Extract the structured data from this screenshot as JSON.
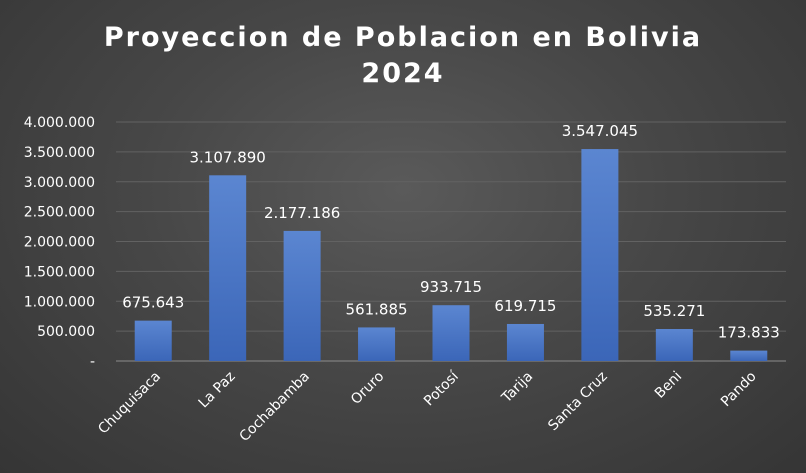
{
  "chart_data": {
    "type": "bar",
    "title_line1": "Proyeccion de Poblacion en Bolivia",
    "title_line2": "2024",
    "categories": [
      "Chuquisaca",
      "La Paz",
      "Cochabamba",
      "Oruro",
      "Potosí",
      "Tarija",
      "Santa Cruz",
      "Beni",
      "Pando"
    ],
    "values": [
      675643,
      3107890,
      2177186,
      561885,
      933715,
      619715,
      3547045,
      535271,
      173833
    ],
    "data_labels": [
      "675.643",
      "3.107.890",
      "2.177.186",
      "561.885",
      "933.715",
      "619.715",
      "3.547.045",
      "535.271",
      "173.833"
    ],
    "y_ticks": [
      0,
      500000,
      1000000,
      1500000,
      2000000,
      2500000,
      3000000,
      3500000,
      4000000
    ],
    "y_tick_labels": [
      "-",
      "500.000",
      "1.000.000",
      "1.500.000",
      "2.000.000",
      "2.500.000",
      "3.000.000",
      "3.500.000",
      "4.000.000"
    ],
    "ylim": [
      0,
      4000000
    ],
    "grid": true,
    "legend": "none",
    "bar_color": "#4472C4",
    "background_color": "#404040",
    "text_color": "#ffffff"
  }
}
